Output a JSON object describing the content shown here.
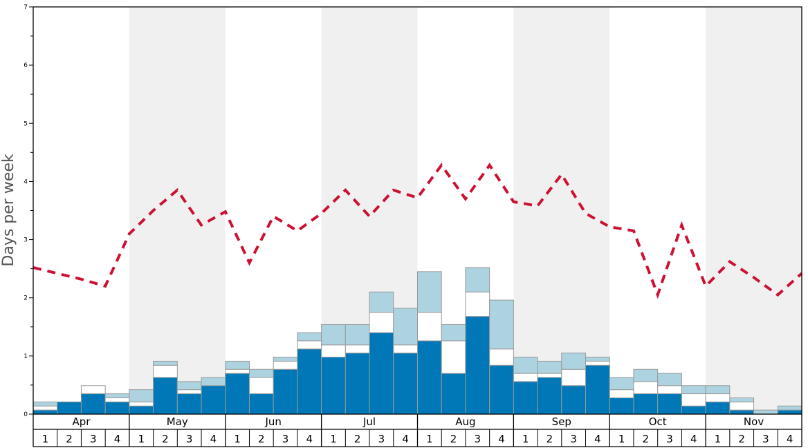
{
  "chart_data": {
    "type": "bar",
    "ylabel": "Days per week",
    "ylim": [
      0,
      7
    ],
    "yticks": [
      "0",
      "1",
      "2",
      "3",
      "4",
      "5",
      "6",
      "7"
    ],
    "months": [
      "Apr",
      "May",
      "Jun",
      "Jul",
      "Aug",
      "Sep",
      "Oct",
      "Nov"
    ],
    "week_labels": [
      "1",
      "2",
      "3",
      "4"
    ],
    "colors": {
      "dark": "#0077b6",
      "light": "#add3e0",
      "mid": "#ffffff",
      "line": "#cc1133",
      "band": "#f0f0f0",
      "bar_edge": "#999999"
    },
    "series": [
      {
        "name": "",
        "color": "#0077b6",
        "values": [
          0.07,
          0.21,
          0.35,
          0.21,
          0.14,
          0.63,
          0.35,
          0.49,
          0.7,
          0.35,
          0.77,
          1.12,
          0.98,
          1.05,
          1.4,
          1.05,
          1.26,
          0.7,
          1.68,
          0.84,
          0.56,
          0.63,
          0.49,
          0.84,
          0.28,
          0.35,
          0.35,
          0.14,
          0.21,
          0.07,
          0.0,
          0.07
        ]
      },
      {
        "name": "",
        "color": "#ffffff",
        "values": [
          0.07,
          0.0,
          0.14,
          0.07,
          0.07,
          0.21,
          0.07,
          0.0,
          0.07,
          0.28,
          0.14,
          0.14,
          0.21,
          0.14,
          0.35,
          0.14,
          0.49,
          0.56,
          0.42,
          0.28,
          0.14,
          0.07,
          0.28,
          0.07,
          0.14,
          0.21,
          0.14,
          0.21,
          0.14,
          0.14,
          0.0,
          0.0
        ]
      },
      {
        "name": "",
        "color": "#add3e0",
        "values": [
          0.07,
          0.0,
          0.0,
          0.07,
          0.21,
          0.07,
          0.14,
          0.14,
          0.14,
          0.14,
          0.07,
          0.14,
          0.35,
          0.35,
          0.35,
          0.63,
          0.7,
          0.28,
          0.42,
          0.84,
          0.28,
          0.21,
          0.28,
          0.07,
          0.21,
          0.21,
          0.21,
          0.14,
          0.14,
          0.07,
          0.07,
          0.07
        ]
      },
      {
        "name": "",
        "type": "line",
        "style": "dashed",
        "color": "#cc1133",
        "values": [
          2.52,
          2.42,
          2.32,
          2.2,
          3.1,
          3.5,
          3.85,
          3.25,
          3.48,
          2.6,
          3.4,
          3.15,
          3.45,
          3.85,
          3.4,
          3.85,
          3.72,
          4.28,
          3.7,
          4.28,
          3.65,
          3.58,
          4.12,
          3.45,
          3.22,
          3.15,
          2.05,
          3.25,
          2.2,
          2.62,
          2.35,
          2.05,
          2.42
        ]
      }
    ]
  }
}
